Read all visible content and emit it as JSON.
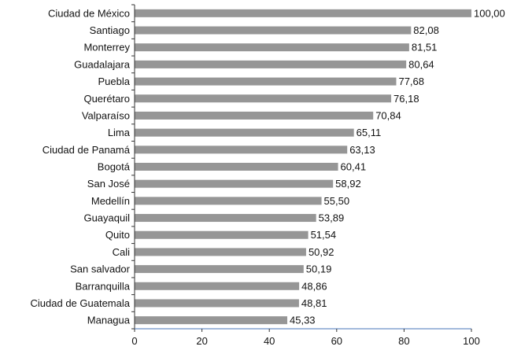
{
  "chart_data": {
    "type": "bar",
    "orientation": "horizontal",
    "categories": [
      "Ciudad de México",
      "Santiago",
      "Monterrey",
      "Guadalajara",
      "Puebla",
      "Querétaro",
      "Valparaíso",
      "Lima",
      "Ciudad de Panamá",
      "Bogotá",
      "San José",
      "Medellín",
      "Guayaquil",
      "Quito",
      "Cali",
      "San salvador",
      "Barranquilla",
      "Ciudad de Guatemala",
      "Managua"
    ],
    "values": [
      100.0,
      82.08,
      81.51,
      80.64,
      77.68,
      76.18,
      70.84,
      65.11,
      63.13,
      60.41,
      58.92,
      55.5,
      53.89,
      51.54,
      50.92,
      50.19,
      48.86,
      48.81,
      45.33
    ],
    "value_labels": [
      "100,00",
      "82,08",
      "81,51",
      "80,64",
      "77,68",
      "76,18",
      "70,84",
      "65,11",
      "63,13",
      "60,41",
      "58,92",
      "55,50",
      "53,89",
      "51,54",
      "50,92",
      "50,19",
      "48,86",
      "48,81",
      "45,33"
    ],
    "xlim": [
      0,
      100
    ],
    "x_ticks": [
      0,
      20,
      40,
      60,
      80,
      100
    ],
    "x_tick_labels": [
      "0",
      "20",
      "40",
      "60",
      "80",
      "100"
    ],
    "grid": false,
    "colors": {
      "bar": "#969696",
      "axis": "#6a8fc7",
      "tick": "#333333"
    }
  }
}
